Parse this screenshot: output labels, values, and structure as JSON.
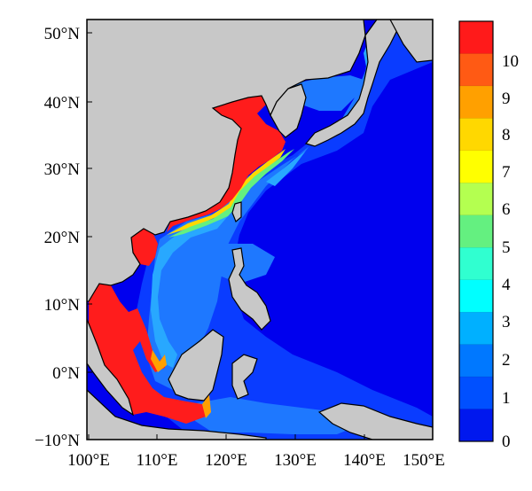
{
  "map": {
    "lat_ticks": [
      "50°N",
      "40°N",
      "30°N",
      "20°N",
      "10°N",
      "0°N",
      "−10°N"
    ],
    "lon_ticks": [
      "100°E",
      "110°E",
      "120°E",
      "130°E",
      "140°E",
      "150°E"
    ],
    "colors": {
      "land": "#c8c8c8",
      "ocean_deep": "#0000ee",
      "level_1": "#0a3cff",
      "level_2": "#1e78ff",
      "level_3": "#28a8ff",
      "high": "#ff1c1c"
    }
  },
  "colorbar": {
    "labels": [
      "10",
      "9",
      "8",
      "7",
      "6",
      "5",
      "4",
      "3",
      "2",
      "1",
      "0"
    ],
    "bands": [
      {
        "value": "10+",
        "color": "#ff1a1a"
      },
      {
        "value": "9-10",
        "color": "#ff5a14"
      },
      {
        "value": "8-9",
        "color": "#ffa000"
      },
      {
        "value": "7-8",
        "color": "#ffd800"
      },
      {
        "value": "6-7",
        "color": "#ffff00"
      },
      {
        "value": "5-6",
        "color": "#b4ff50"
      },
      {
        "value": "4-5",
        "color": "#64f080"
      },
      {
        "value": "3-4",
        "color": "#30ffd0"
      },
      {
        "value": "2-3",
        "color": "#00ffff"
      },
      {
        "value": "1-2",
        "color": "#00b0ff"
      },
      {
        "value": "0-1",
        "color": "#0078ff"
      },
      {
        "value": "0",
        "color": "#0050ff"
      },
      {
        "value": "below-0",
        "color": "#0018ee"
      }
    ]
  }
}
